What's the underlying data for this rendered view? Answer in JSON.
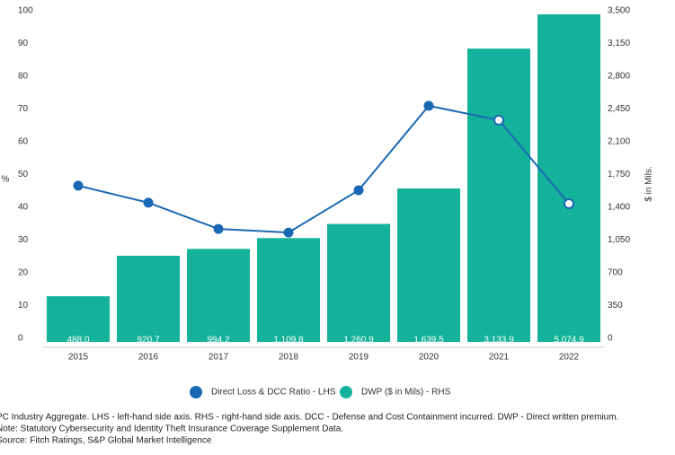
{
  "chart_data": {
    "type": "bar-line",
    "categories": [
      "2015",
      "2016",
      "2017",
      "2018",
      "2019",
      "2020",
      "2021",
      "2022"
    ],
    "series": [
      {
        "name": "Direct Loss & DCC Ratio - LHS",
        "type": "line",
        "color": "#1a68b3",
        "axis": "y",
        "values": [
          47.7,
          42.5,
          34.5,
          33.4,
          46.3,
          72.1,
          67.7,
          42.2
        ],
        "hollow": [
          false,
          false,
          false,
          false,
          false,
          false,
          true,
          true
        ]
      },
      {
        "name": "DWP ($ in Mils) - RHS",
        "type": "bar",
        "color": "#14b29a",
        "axis": "y2",
        "values": [
          488.0,
          920.7,
          994.2,
          1109.8,
          1260.9,
          1639.5,
          3133.9,
          5074.9
        ],
        "value_labels": [
          "488.0",
          "920.7",
          "994.2",
          "1,109.8",
          "1,260.9",
          "1,639.5",
          "3,133.9",
          "5,074.9"
        ]
      }
    ],
    "y_label": "%",
    "y2_label": "$ in Mils.",
    "ylim": [
      0,
      100
    ],
    "yticks": [
      0,
      10,
      20,
      30,
      40,
      50,
      60,
      70,
      80,
      90,
      100
    ],
    "y2lim": [
      0,
      3500
    ],
    "y2ticks": [
      0,
      350,
      700,
      {
        "value": 1050,
        "label": "1,050"
      },
      {
        "value": 1400,
        "label": "1,400"
      },
      {
        "value": 1750,
        "label": "1,750"
      },
      {
        "value": 2100,
        "label": "2,100"
      },
      {
        "value": 2450,
        "label": "2,450"
      },
      {
        "value": 2800,
        "label": "2,800"
      },
      {
        "value": 3150,
        "label": "3,150"
      },
      {
        "value": 3500,
        "label": "3,500"
      }
    ],
    "grid": false,
    "legend": "bottom",
    "notes": [
      "PC Industry Aggregate. LHS - left-hand side axis. RHS - right-hand side axis. DCC - Defense and Cost Containment incurred. DWP - Direct written premium.",
      "Note: Statutory Cybersecurity and Identity Theft Insurance Coverage Supplement Data.",
      "Source: Fitch Ratings, S&P Global Market Intelligence"
    ]
  }
}
